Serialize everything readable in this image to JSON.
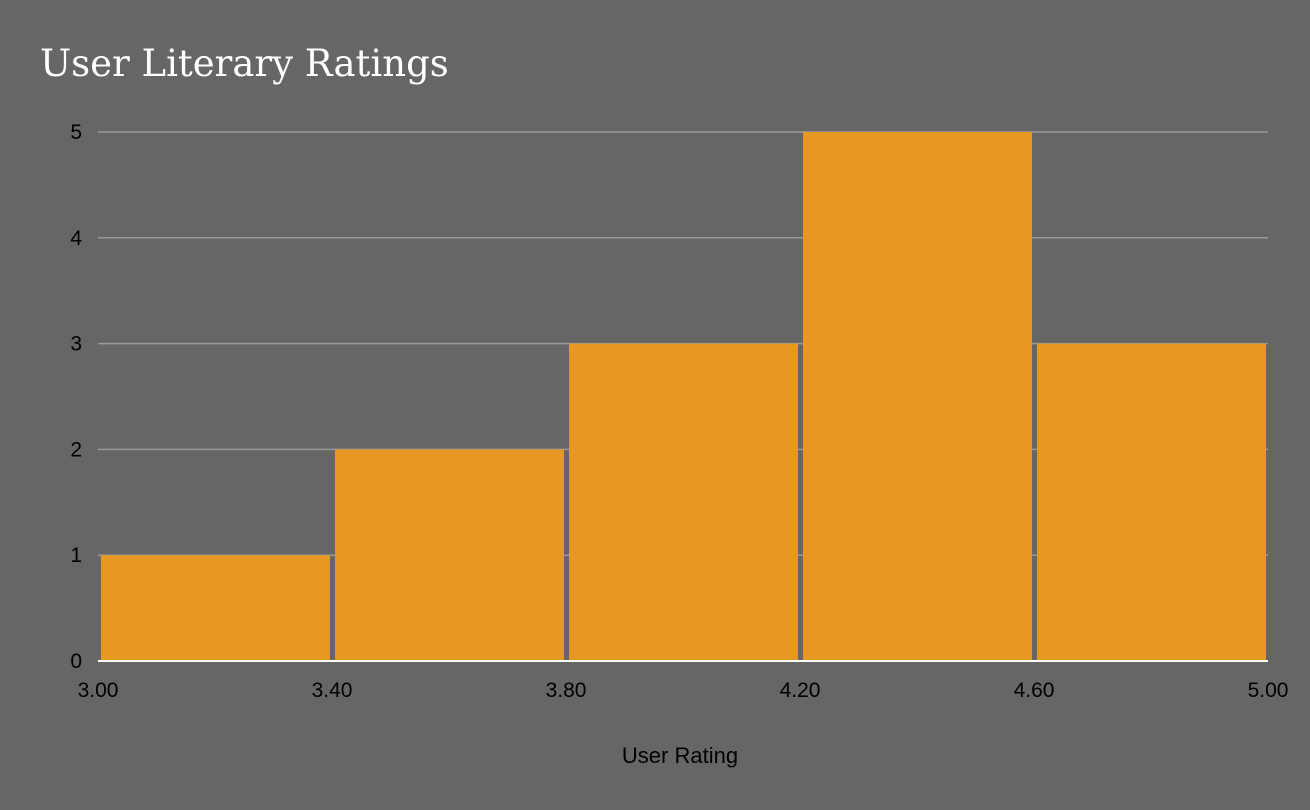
{
  "chart_data": {
    "type": "bar",
    "title": "User Literary Ratings",
    "xlabel": "User Rating",
    "ylabel": "",
    "bins": [
      {
        "start": 3.0,
        "end": 3.4,
        "count": 1
      },
      {
        "start": 3.4,
        "end": 3.8,
        "count": 2
      },
      {
        "start": 3.8,
        "end": 4.2,
        "count": 3
      },
      {
        "start": 4.2,
        "end": 4.6,
        "count": 5
      },
      {
        "start": 4.6,
        "end": 5.0,
        "count": 3
      }
    ],
    "x_ticks": [
      "3.00",
      "3.40",
      "3.80",
      "4.20",
      "4.60",
      "5.00"
    ],
    "y_ticks": [
      "0",
      "1",
      "2",
      "3",
      "4",
      "5"
    ],
    "xlim": [
      3.0,
      5.0
    ],
    "ylim": [
      0,
      5
    ],
    "grid": true,
    "legend": "none",
    "colors": {
      "background": "#666666",
      "bar": "#e69724",
      "grid": "#9a9a9a",
      "baseline": "#ffffff",
      "title": "#ffffff",
      "text": "#000000"
    }
  }
}
